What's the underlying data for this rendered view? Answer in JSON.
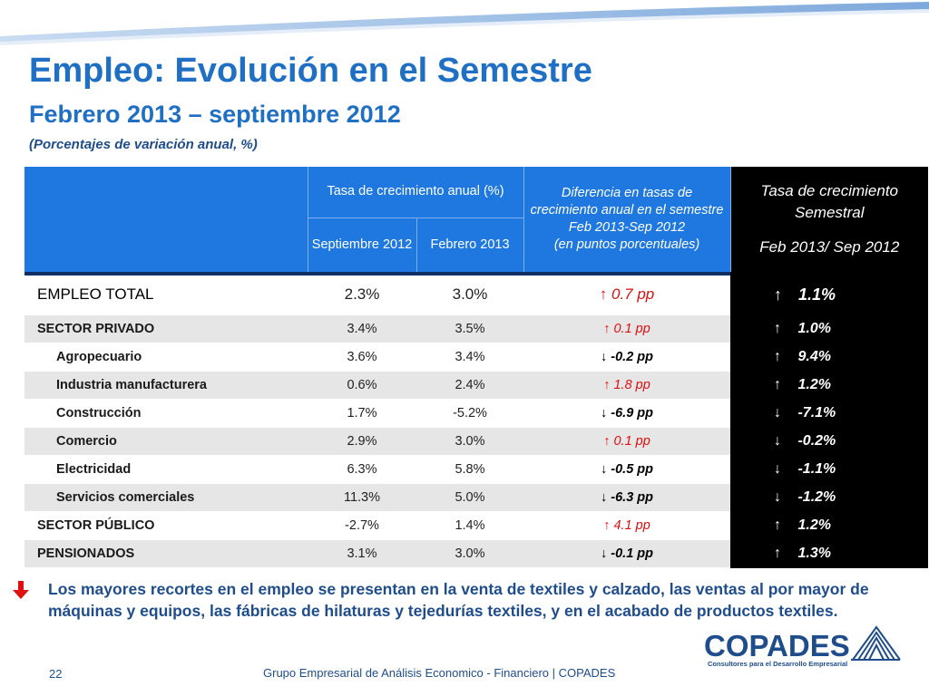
{
  "title": "Empleo: Evolución en el Semestre",
  "subtitle": "Febrero 2013 – septiembre 2012",
  "note": "(Porcentajes de variación anual, %)",
  "table": {
    "header": {
      "group_rate": "Tasa de crecimiento anual (%)",
      "col_sep": "Septiembre 2012",
      "col_feb": "Febrero 2013",
      "diff_line1": "Diferencia en tasas de crecimiento anual  en el semestre",
      "diff_line2": "Feb 2013-Sep 2012",
      "diff_line3": "(en puntos porcentuales)",
      "sem_line1": "Tasa de crecimiento Semestral",
      "sem_line2": "Feb 2013/ Sep 2012"
    },
    "rows": [
      {
        "label": "EMPLEO TOTAL",
        "sep": "2.3%",
        "feb": "3.0%",
        "diff_arrow": "↑",
        "diff": "0.7 pp",
        "sem_arrow": "↑",
        "sem": "1.1%"
      },
      {
        "label": "SECTOR PRIVADO",
        "sep": "3.4%",
        "feb": "3.5%",
        "diff_arrow": "↑",
        "diff": "0.1 pp",
        "sem_arrow": "↑",
        "sem": "1.0%"
      },
      {
        "label": "Agropecuario",
        "sep": "3.6%",
        "feb": "3.4%",
        "diff_arrow": "↓",
        "diff": "-0.2 pp",
        "sem_arrow": "↑",
        "sem": "9.4%"
      },
      {
        "label": "Industria manufacturera",
        "sep": "0.6%",
        "feb": "2.4%",
        "diff_arrow": "↑",
        "diff": "1.8 pp",
        "sem_arrow": "↑",
        "sem": "1.2%"
      },
      {
        "label": "Construcción",
        "sep": "1.7%",
        "feb": "-5.2%",
        "diff_arrow": "↓",
        "diff": "-6.9 pp",
        "sem_arrow": "↓",
        "sem": "-7.1%"
      },
      {
        "label": "Comercio",
        "sep": "2.9%",
        "feb": "3.0%",
        "diff_arrow": "↑",
        "diff": "0.1 pp",
        "sem_arrow": "↓",
        "sem": "-0.2%"
      },
      {
        "label": "Electricidad",
        "sep": "6.3%",
        "feb": "5.8%",
        "diff_arrow": "↓",
        "diff": "-0.5 pp",
        "sem_arrow": "↓",
        "sem": "-1.1%"
      },
      {
        "label": "Servicios comerciales",
        "sep": "11.3%",
        "feb": "5.0%",
        "diff_arrow": "↓",
        "diff": "-6.3 pp",
        "sem_arrow": "↓",
        "sem": "-1.2%"
      },
      {
        "label": "SECTOR PÚBLICO",
        "sep": "-2.7%",
        "feb": "1.4%",
        "diff_arrow": "↑",
        "diff": "4.1 pp",
        "sem_arrow": "↑",
        "sem": "1.2%"
      },
      {
        "label": "PENSIONADOS",
        "sep": "3.1%",
        "feb": "3.0%",
        "diff_arrow": "↓",
        "diff": "-0.1 pp",
        "sem_arrow": "↑",
        "sem": "1.3%"
      }
    ]
  },
  "comment_icon": "red-down-arrow-icon",
  "comment": "Los mayores recortes en el empleo se presentan en la venta de textiles y calzado, las ventas al por mayor de máquinas y equipos, las fábricas de hilaturas y tejedurías textiles, y en el acabado de productos textiles.",
  "logo": {
    "name": "COPADES",
    "tagline": "Consultores para el Desarrollo Empresarial"
  },
  "footer": {
    "page": "22",
    "text": "Grupo Empresarial de Análisis Economico - Financiero | COPADES"
  },
  "colors": {
    "title": "#1f6fc4",
    "header_blue": "#1f78e0",
    "positive_red": "#e01010",
    "negative_yellow": "#ffea00"
  }
}
